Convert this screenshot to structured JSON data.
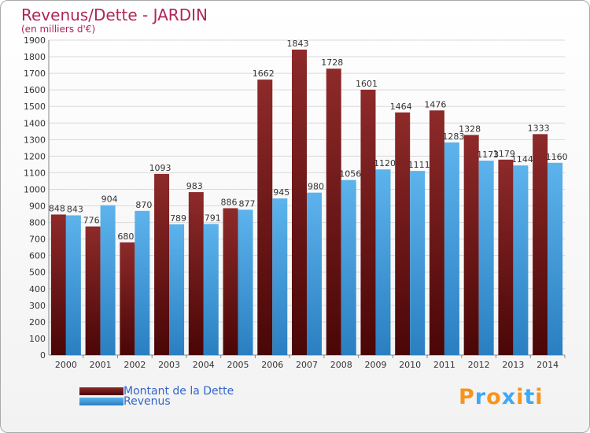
{
  "header": {
    "title": "Revenus/Dette - JARDIN",
    "subtitle": "(en milliers d'€)"
  },
  "colors": {
    "dette": "#7a1a1a",
    "revenus": "#4aa3df",
    "title": "#b0255a",
    "legend_text": "#3366cc"
  },
  "legend": {
    "dette_label": "Montant de la Dette",
    "revenus_label": "Revenus"
  },
  "logo": {
    "text": "Proxiti",
    "letter_colors": [
      "#f7941d",
      "#3fa9f5",
      "#f7941d",
      "#3fa9f5",
      "#f7941d",
      "#3fa9f5",
      "#f7941d"
    ]
  },
  "chart_data": {
    "type": "bar",
    "title": "Revenus/Dette - JARDIN",
    "ylabel": "(en milliers d'€)",
    "categories": [
      "2000",
      "2001",
      "2002",
      "2003",
      "2004",
      "2005",
      "2006",
      "2007",
      "2008",
      "2009",
      "2010",
      "2011",
      "2012",
      "2013",
      "2014"
    ],
    "series": [
      {
        "name": "Montant de la Dette",
        "values": [
          848,
          776,
          680,
          1093,
          983,
          886,
          1662,
          1843,
          1728,
          1601,
          1464,
          1476,
          1328,
          1179,
          1333
        ]
      },
      {
        "name": "Revenus",
        "values": [
          843,
          904,
          870,
          789,
          791,
          877,
          945,
          980,
          1056,
          1120,
          1111,
          1283,
          1173,
          1144,
          1160
        ]
      }
    ],
    "ylim": [
      0,
      1900
    ],
    "ytick_step": 100,
    "grid": true,
    "legend_position": "bottom-left"
  }
}
